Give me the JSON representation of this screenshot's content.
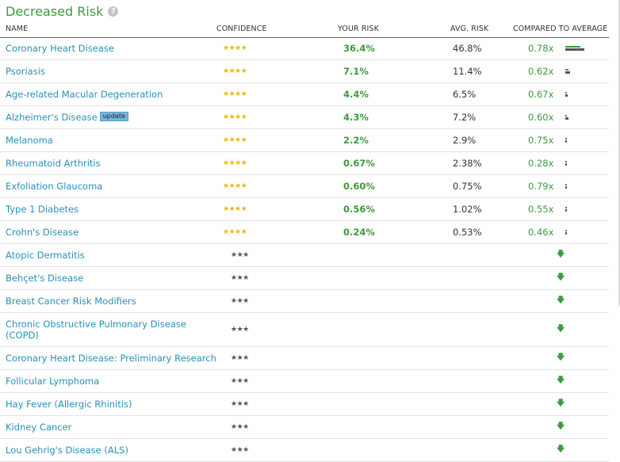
{
  "title": "Decreased Risk",
  "help_icon": "question-mark-icon",
  "columns": {
    "name": "NAME",
    "confidence": "CONFIDENCE",
    "your_risk": "YOUR RISK",
    "avg_risk": "AVG. RISK",
    "compared": "COMPARED TO AVERAGE"
  },
  "rows": [
    {
      "name": "Coronary Heart Disease",
      "stars": "★★★★",
      "your_risk": "36.4%",
      "avg_risk": "46.8%",
      "compared": "0.78x",
      "your_fraction": 0.364,
      "avg_fraction": 0.468
    },
    {
      "name": "Psoriasis",
      "stars": "★★★★",
      "your_risk": "7.1%",
      "avg_risk": "11.4%",
      "compared": "0.62x",
      "your_fraction": 0.071,
      "avg_fraction": 0.114
    },
    {
      "name": "Age-related Macular Degeneration",
      "stars": "★★★★",
      "your_risk": "4.4%",
      "avg_risk": "6.5%",
      "compared": "0.67x",
      "your_fraction": 0.044,
      "avg_fraction": 0.065
    },
    {
      "name": "Alzheimer's Disease",
      "badge": "update",
      "stars": "★★★★",
      "your_risk": "4.3%",
      "avg_risk": "7.2%",
      "compared": "0.60x",
      "your_fraction": 0.043,
      "avg_fraction": 0.072
    },
    {
      "name": "Melanoma",
      "stars": "★★★★",
      "your_risk": "2.2%",
      "avg_risk": "2.9%",
      "compared": "0.75x",
      "your_fraction": 0.022,
      "avg_fraction": 0.029
    },
    {
      "name": "Rheumatoid Arthritis",
      "stars": "★★★★",
      "your_risk": "0.67%",
      "avg_risk": "2.38%",
      "compared": "0.28x",
      "your_fraction": 0.0067,
      "avg_fraction": 0.0238
    },
    {
      "name": "Exfoliation Glaucoma",
      "stars": "★★★★",
      "your_risk": "0.60%",
      "avg_risk": "0.75%",
      "compared": "0.79x",
      "your_fraction": 0.006,
      "avg_fraction": 0.0075
    },
    {
      "name": "Type 1 Diabetes",
      "stars": "★★★★",
      "your_risk": "0.56%",
      "avg_risk": "1.02%",
      "compared": "0.55x",
      "your_fraction": 0.0056,
      "avg_fraction": 0.0102
    },
    {
      "name": "Crohn's Disease",
      "stars": "★★★★",
      "your_risk": "0.24%",
      "avg_risk": "0.53%",
      "compared": "0.46x",
      "your_fraction": 0.0024,
      "avg_fraction": 0.0053
    },
    {
      "name": "Atopic Dermatitis",
      "stars": "★★★",
      "arrow": "down-arrow-icon"
    },
    {
      "name": "Behçet's Disease",
      "stars": "★★★",
      "arrow": "down-arrow-icon"
    },
    {
      "name": "Breast Cancer Risk Modifiers",
      "stars": "★★★",
      "arrow": "down-arrow-icon"
    },
    {
      "name": "Chronic Obstructive Pulmonary Disease (COPD)",
      "stars": "★★★",
      "arrow": "down-arrow-icon",
      "tall": true
    },
    {
      "name": "Coronary Heart Disease: Preliminary Research",
      "stars": "★★★",
      "arrow": "down-arrow-icon"
    },
    {
      "name": "Follicular Lymphoma",
      "stars": "★★★",
      "arrow": "down-arrow-icon"
    },
    {
      "name": "Hay Fever (Allergic Rhinitis)",
      "stars": "★★★",
      "arrow": "down-arrow-icon"
    },
    {
      "name": "Kidney Cancer",
      "stars": "★★★",
      "arrow": "down-arrow-icon"
    },
    {
      "name": "Lou Gehrig's Disease (ALS)",
      "stars": "★★★",
      "arrow": "down-arrow-icon"
    }
  ]
}
